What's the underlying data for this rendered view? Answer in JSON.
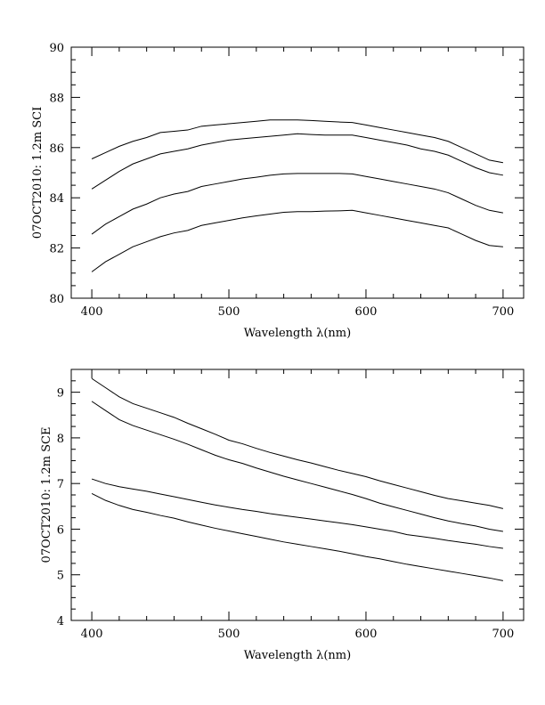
{
  "chart_data": [
    {
      "type": "line",
      "xlabel": "Wavelength λ(nm)",
      "ylabel": "07OCT2010: 1.2m SCI",
      "xlim": [
        385,
        715
      ],
      "ylim": [
        80,
        90
      ],
      "x_ticks": [
        400,
        500,
        600,
        700
      ],
      "y_ticks": [
        80,
        82,
        84,
        86,
        88,
        90
      ],
      "x_minor_step": 20,
      "y_minor_step": 0.5,
      "grid": false,
      "x": [
        400,
        410,
        420,
        430,
        440,
        450,
        460,
        470,
        480,
        490,
        500,
        510,
        520,
        530,
        540,
        550,
        560,
        570,
        580,
        590,
        600,
        610,
        620,
        630,
        640,
        650,
        660,
        670,
        680,
        690,
        700
      ],
      "series": [
        {
          "values": [
            85.55,
            85.8,
            86.05,
            86.25,
            86.4,
            86.6,
            86.65,
            86.7,
            86.85,
            86.9,
            86.95,
            87.0,
            87.05,
            87.1,
            87.1,
            87.1,
            87.08,
            87.05,
            87.02,
            87.0,
            86.9,
            86.8,
            86.7,
            86.6,
            86.5,
            86.4,
            86.25,
            86.0,
            85.75,
            85.5,
            85.4
          ]
        },
        {
          "values": [
            84.35,
            84.7,
            85.05,
            85.35,
            85.55,
            85.75,
            85.85,
            85.95,
            86.1,
            86.2,
            86.3,
            86.35,
            86.4,
            86.45,
            86.5,
            86.55,
            86.52,
            86.5,
            86.5,
            86.5,
            86.4,
            86.3,
            86.2,
            86.1,
            85.95,
            85.85,
            85.7,
            85.45,
            85.2,
            85.0,
            84.9
          ]
        },
        {
          "values": [
            82.55,
            82.95,
            83.25,
            83.55,
            83.75,
            84.0,
            84.15,
            84.25,
            84.45,
            84.55,
            84.65,
            84.75,
            84.82,
            84.9,
            84.95,
            84.97,
            84.97,
            84.97,
            84.97,
            84.95,
            84.85,
            84.75,
            84.65,
            84.55,
            84.45,
            84.35,
            84.2,
            83.95,
            83.7,
            83.5,
            83.4
          ]
        },
        {
          "values": [
            81.05,
            81.45,
            81.75,
            82.05,
            82.25,
            82.45,
            82.6,
            82.7,
            82.9,
            83.0,
            83.1,
            83.2,
            83.28,
            83.35,
            83.42,
            83.45,
            83.45,
            83.47,
            83.48,
            83.5,
            83.4,
            83.3,
            83.2,
            83.1,
            83.0,
            82.9,
            82.8,
            82.55,
            82.3,
            82.1,
            82.05
          ]
        }
      ]
    },
    {
      "type": "line",
      "xlabel": "Wavelength λ(nm)",
      "ylabel": "07OCT2010: 1.2m SCE",
      "xlim": [
        385,
        715
      ],
      "ylim": [
        4,
        9.5
      ],
      "x_ticks": [
        400,
        500,
        600,
        700
      ],
      "y_ticks": [
        4,
        5,
        6,
        7,
        8,
        9
      ],
      "x_minor_step": 20,
      "y_minor_step": 0.25,
      "grid": false,
      "x": [
        400,
        410,
        420,
        430,
        440,
        450,
        460,
        470,
        480,
        490,
        500,
        510,
        520,
        530,
        540,
        550,
        560,
        570,
        580,
        590,
        600,
        610,
        620,
        630,
        640,
        650,
        660,
        670,
        680,
        690,
        700
      ],
      "series": [
        {
          "values": [
            9.3,
            9.1,
            8.9,
            8.75,
            8.65,
            8.55,
            8.45,
            8.32,
            8.2,
            8.08,
            7.95,
            7.87,
            7.77,
            7.68,
            7.6,
            7.52,
            7.45,
            7.37,
            7.29,
            7.22,
            7.15,
            7.06,
            6.98,
            6.9,
            6.82,
            6.74,
            6.67,
            6.62,
            6.57,
            6.52,
            6.45
          ]
        },
        {
          "values": [
            8.8,
            8.6,
            8.4,
            8.27,
            8.17,
            8.07,
            7.97,
            7.86,
            7.74,
            7.62,
            7.52,
            7.44,
            7.34,
            7.25,
            7.16,
            7.08,
            7.0,
            6.92,
            6.84,
            6.76,
            6.67,
            6.57,
            6.49,
            6.41,
            6.33,
            6.25,
            6.18,
            6.12,
            6.07,
            6.0,
            5.95
          ]
        },
        {
          "values": [
            7.1,
            7.0,
            6.93,
            6.88,
            6.83,
            6.77,
            6.71,
            6.65,
            6.59,
            6.53,
            6.48,
            6.43,
            6.39,
            6.34,
            6.3,
            6.26,
            6.22,
            6.18,
            6.14,
            6.1,
            6.05,
            6.0,
            5.95,
            5.88,
            5.84,
            5.8,
            5.75,
            5.71,
            5.67,
            5.62,
            5.58
          ]
        },
        {
          "values": [
            6.78,
            6.63,
            6.52,
            6.43,
            6.37,
            6.3,
            6.24,
            6.16,
            6.09,
            6.02,
            5.96,
            5.9,
            5.84,
            5.78,
            5.72,
            5.67,
            5.62,
            5.57,
            5.52,
            5.46,
            5.4,
            5.35,
            5.29,
            5.23,
            5.18,
            5.13,
            5.08,
            5.03,
            4.98,
            4.93,
            4.87
          ]
        }
      ]
    }
  ]
}
